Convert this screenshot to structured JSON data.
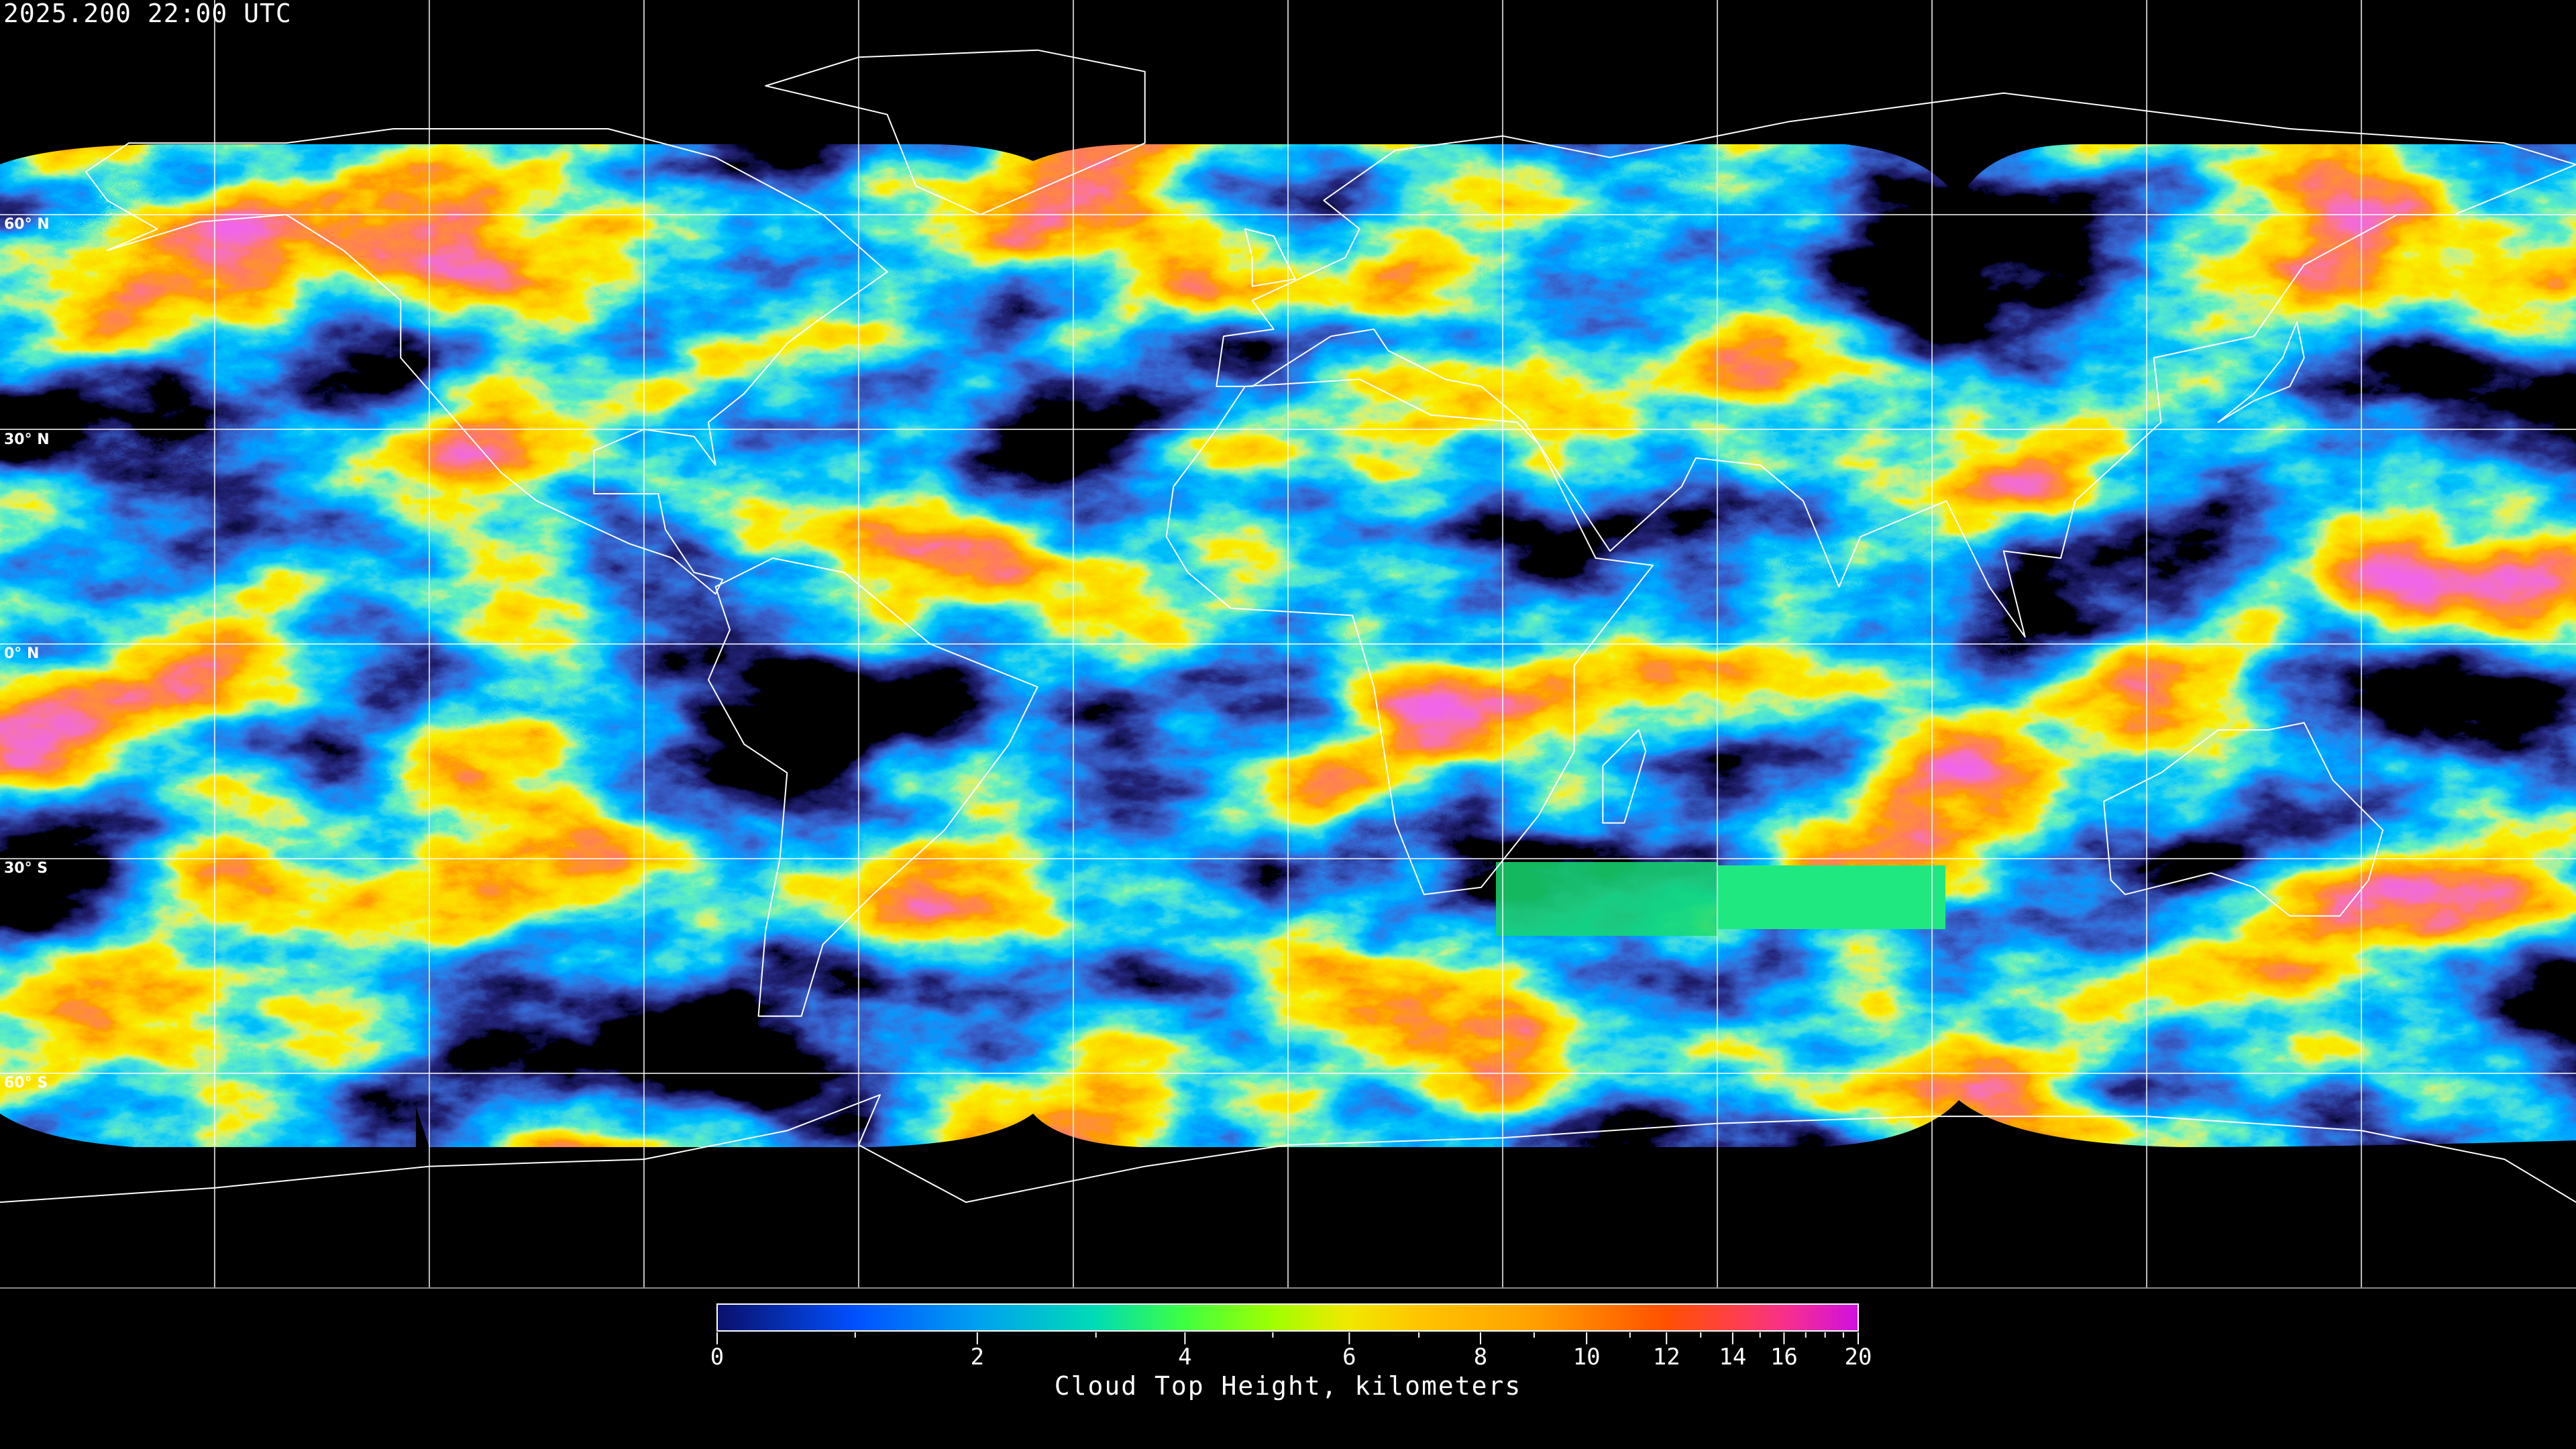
{
  "timestamp": "2025.200 22:00 UTC",
  "map": {
    "projection": "equirectangular",
    "product": "cloud top height",
    "latitude_labels": [
      "60° N",
      "30° N",
      "0° N",
      "30° S",
      "60° S"
    ],
    "grid_spacing_degrees": 30,
    "coastline_color": "#ffffff",
    "grid_color": "#ffffff",
    "no_data_color": "#000000"
  },
  "colorbar": {
    "title": "Cloud Top Height, kilometers",
    "range": [
      0,
      20
    ],
    "major_ticks": [
      "0",
      "2",
      "4",
      "6",
      "8",
      "10",
      "12",
      "14",
      "16",
      "20"
    ],
    "minor_ticks": [
      1,
      3,
      5,
      7,
      9,
      11,
      13,
      15,
      17,
      18,
      19
    ],
    "color_stops": [
      {
        "value": 0,
        "color": "#0a0f6a"
      },
      {
        "value": 1,
        "color": "#0050ff"
      },
      {
        "value": 2,
        "color": "#00a0f0"
      },
      {
        "value": 3,
        "color": "#00dcb4"
      },
      {
        "value": 4,
        "color": "#40ff40"
      },
      {
        "value": 5,
        "color": "#a0ff00"
      },
      {
        "value": 6,
        "color": "#f0e800"
      },
      {
        "value": 7,
        "color": "#ffc400"
      },
      {
        "value": 9,
        "color": "#ffa000"
      },
      {
        "value": 12,
        "color": "#ff5000"
      },
      {
        "value": 14,
        "color": "#ff4048"
      },
      {
        "value": 16,
        "color": "#f8308a"
      },
      {
        "value": 20,
        "color": "#d010e0"
      }
    ]
  }
}
